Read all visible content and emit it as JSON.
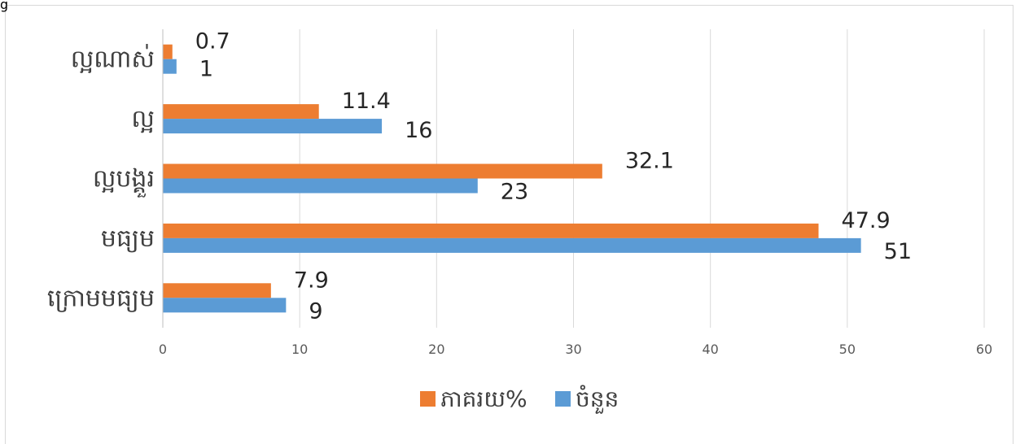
{
  "corner_mark": "g",
  "chart_data": {
    "type": "bar",
    "orientation": "horizontal",
    "categories": [
      "ល្អណាស់",
      "ល្អ",
      "ល្អបង្គួរ",
      "មធ្យម",
      "ក្រោមមធ្យម"
    ],
    "series": [
      {
        "name": "ភាគរយ%",
        "color": "#ed7d31",
        "values": [
          0.7,
          11.4,
          32.1,
          47.9,
          7.9
        ]
      },
      {
        "name": "ចំនួន",
        "color": "#5b9bd5",
        "values": [
          1,
          16,
          23,
          51,
          9
        ]
      }
    ],
    "xlim": [
      0,
      60
    ],
    "xticks": [
      "0",
      "10",
      "20",
      "30",
      "40",
      "50",
      "60"
    ],
    "grid": true,
    "legend_position": "bottom",
    "data_labels": true
  }
}
